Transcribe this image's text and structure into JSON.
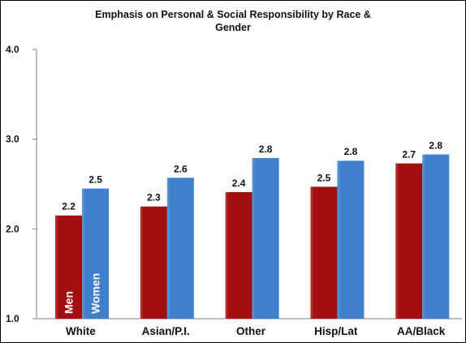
{
  "chart_data": {
    "type": "bar",
    "title_lines": [
      "Emphasis on Personal & Social Responsibility by Race &",
      "Gender"
    ],
    "categories": [
      "White",
      "Asian/P.I.",
      "Other",
      "Hisp/Lat",
      "AA/Black"
    ],
    "series": [
      {
        "name": "Men",
        "color": "#a30f10",
        "values": [
          2.15,
          2.25,
          2.41,
          2.47,
          2.73
        ],
        "labels": [
          "2.2",
          "2.3",
          "2.4",
          "2.5",
          "2.7"
        ]
      },
      {
        "name": "Women",
        "color": "#3f7fcc",
        "values": [
          2.45,
          2.57,
          2.79,
          2.76,
          2.83
        ],
        "labels": [
          "2.5",
          "2.6",
          "2.8",
          "2.8",
          "2.8"
        ]
      }
    ],
    "ylim": [
      1.0,
      4.0
    ],
    "yticks": [
      "1.0",
      "2.0",
      "3.0",
      "4.0"
    ],
    "grid": false,
    "legend": "inside-first-bars"
  }
}
